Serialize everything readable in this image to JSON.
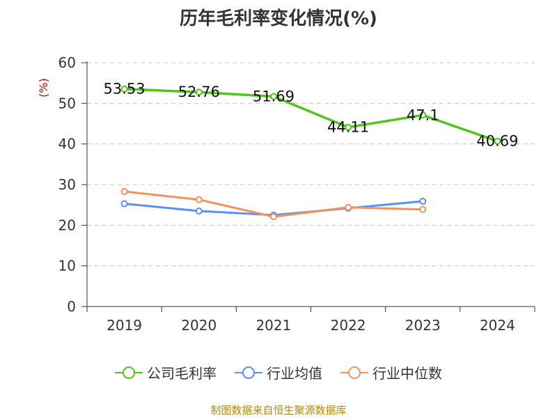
{
  "chart_data": {
    "type": "line",
    "title": "历年毛利率变化情况(%)",
    "ylabel": "(%)",
    "ylim": [
      0,
      60
    ],
    "yticks": [
      0,
      10,
      20,
      30,
      40,
      50,
      60
    ],
    "categories": [
      "2019",
      "2020",
      "2021",
      "2022",
      "2023",
      "2024"
    ],
    "series": [
      {
        "name": "公司毛利率",
        "color": "#52c41a",
        "values": [
          53.53,
          52.76,
          51.69,
          44.11,
          47.1,
          40.69
        ],
        "labels": [
          "53.53",
          "52.76",
          "51.69",
          "44.11",
          "47.1",
          "40.69"
        ]
      },
      {
        "name": "行业均值",
        "color": "#5b8ff9",
        "values": [
          25.3,
          23.5,
          22.5,
          24.2,
          25.9,
          null
        ]
      },
      {
        "name": "行业中位数",
        "color": "#f6905a",
        "values": [
          28.3,
          26.3,
          22.1,
          24.4,
          23.9,
          null
        ]
      }
    ],
    "grid": true,
    "legend_position": "bottom"
  },
  "source_note": "制图数据来自恒生聚源数据库"
}
